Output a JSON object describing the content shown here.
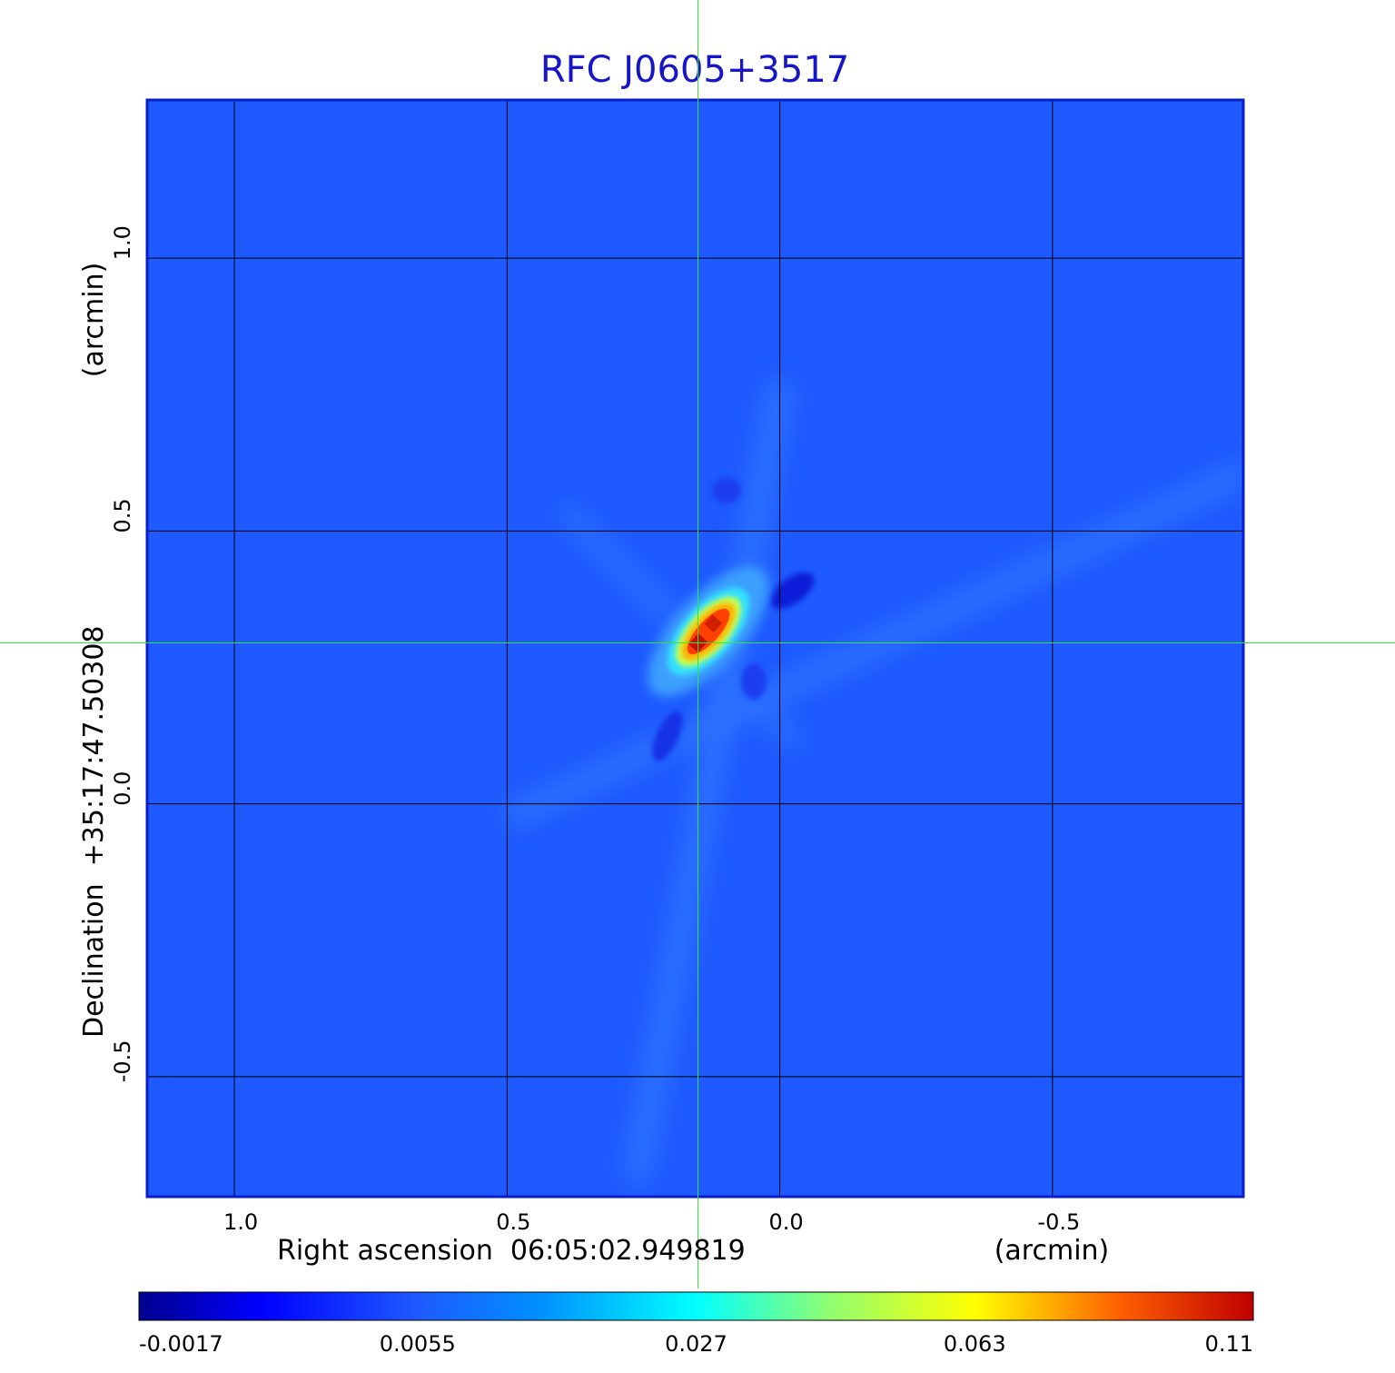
{
  "chart_data": {
    "type": "heatmap",
    "title": "RFC J0605+3517",
    "xlabel": "Right ascension  06:05:02.949819",
    "xunit": "(arcmin)",
    "ylabel": "Declination  +35:17:47.50308",
    "yunit": "(arcmin)",
    "x_ticks": [
      {
        "value": 1.0,
        "label": "1.0"
      },
      {
        "value": 0.5,
        "label": "0.5"
      },
      {
        "value": 0.0,
        "label": "0.0"
      },
      {
        "value": -0.5,
        "label": "-0.5"
      }
    ],
    "y_ticks": [
      {
        "value": 1.0,
        "label": "1.0"
      },
      {
        "value": 0.5,
        "label": "0.5"
      },
      {
        "value": 0.0,
        "label": "0.0"
      },
      {
        "value": -0.5,
        "label": "-0.5"
      }
    ],
    "xlim": [
      1.16,
      -0.85
    ],
    "ylim": [
      -0.72,
      1.29
    ],
    "grid": true,
    "crosshair": {
      "x": 0.15,
      "y": 0.295
    },
    "source_peak": {
      "x": 0.13,
      "y": 0.31,
      "value": 0.11
    },
    "colorbar": {
      "ticks": [
        "-0.0017",
        "0.0055",
        "0.027",
        "0.063",
        "0.11"
      ],
      "colormap": "jet"
    },
    "colors": {
      "title": "#1616c8",
      "frame": "#0a1ec8",
      "background_field": "#1e5aff",
      "grid": "#000000",
      "crosshair": "#33e633"
    }
  }
}
